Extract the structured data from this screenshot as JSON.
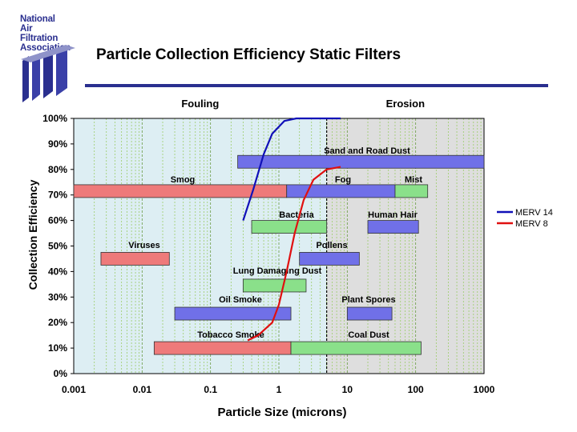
{
  "logo": {
    "lines": [
      "National",
      "Air",
      "Filtration",
      "Association"
    ]
  },
  "title": "Particle Collection Efficiency Static Filters",
  "chart_data": {
    "type": "bar",
    "xlabel": "Particle Size (microns)",
    "ylabel": "Collection Efficiency",
    "x_scale": "log",
    "xlim": [
      0.001,
      1000
    ],
    "ylim": [
      0,
      100
    ],
    "x_ticks": [
      {
        "value": 0.001,
        "label": "0.001"
      },
      {
        "value": 0.01,
        "label": "0.01"
      },
      {
        "value": 0.1,
        "label": "0.1"
      },
      {
        "value": 1,
        "label": "1"
      },
      {
        "value": 10,
        "label": "10"
      },
      {
        "value": 100,
        "label": "100"
      },
      {
        "value": 1000,
        "label": "1000"
      }
    ],
    "y_ticks": [
      {
        "value": 0,
        "label": "0%"
      },
      {
        "value": 10,
        "label": "10%"
      },
      {
        "value": 20,
        "label": "20%"
      },
      {
        "value": 30,
        "label": "30%"
      },
      {
        "value": 40,
        "label": "40%"
      },
      {
        "value": 50,
        "label": "50%"
      },
      {
        "value": 60,
        "label": "60%"
      },
      {
        "value": 70,
        "label": "70%"
      },
      {
        "value": 80,
        "label": "80%"
      },
      {
        "value": 90,
        "label": "90%"
      },
      {
        "value": 100,
        "label": "100%"
      }
    ],
    "regions": [
      {
        "label": "Fouling",
        "x_from": 0.001,
        "x_to": 5,
        "color": "#ddeef3"
      },
      {
        "label": "Erosion",
        "x_from": 5,
        "x_to": 1000,
        "color": "#dedede"
      }
    ],
    "particles": [
      {
        "name": "Sand and Road Dust",
        "x_from": 0.25,
        "x_to": 1000,
        "y": 83,
        "color": "#7070e8"
      },
      {
        "name": "Smog",
        "x_from": 0.001,
        "x_to": 1.3,
        "y": 71.5,
        "color": "#ee7a7a"
      },
      {
        "name": "Fog",
        "x_from": 1.3,
        "x_to": 50,
        "y": 71.5,
        "color": "#7070e8"
      },
      {
        "name": "Mist",
        "x_from": 50,
        "x_to": 150,
        "y": 71.5,
        "color": "#8ae08a"
      },
      {
        "name": "Bacteria",
        "x_from": 0.4,
        "x_to": 5,
        "y": 57.5,
        "color": "#8ae08a"
      },
      {
        "name": "Human Hair",
        "x_from": 20,
        "x_to": 110,
        "y": 57.5,
        "color": "#7070e8"
      },
      {
        "name": "Viruses",
        "x_from": 0.0025,
        "x_to": 0.025,
        "y": 45,
        "color": "#ee7a7a"
      },
      {
        "name": "Pollens",
        "x_from": 2,
        "x_to": 15,
        "y": 45,
        "color": "#7070e8"
      },
      {
        "name": "Lung Damaging Dust",
        "x_from": 0.3,
        "x_to": 2.5,
        "y": 34.5,
        "color": "#8ae08a"
      },
      {
        "name": "Oil Smoke",
        "x_from": 0.03,
        "x_to": 1.5,
        "y": 23.5,
        "color": "#7070e8"
      },
      {
        "name": "Plant Spores",
        "x_from": 10,
        "x_to": 45,
        "y": 23.5,
        "color": "#7070e8"
      },
      {
        "name": "Tobacco Smoke",
        "x_from": 0.015,
        "x_to": 1.5,
        "y": 10,
        "color": "#ee7a7a"
      },
      {
        "name": "Coal Dust",
        "x_from": 1.5,
        "x_to": 120,
        "y": 10,
        "color": "#8ae08a"
      }
    ],
    "series": [
      {
        "name": "MERV 14",
        "color": "#1010b8",
        "points": [
          [
            0.3,
            60
          ],
          [
            0.42,
            72
          ],
          [
            0.6,
            86
          ],
          [
            0.8,
            94
          ],
          [
            1.2,
            99
          ],
          [
            1.8,
            100
          ],
          [
            8,
            100
          ]
        ]
      },
      {
        "name": "MERV 8",
        "color": "#e01010",
        "points": [
          [
            0.35,
            13
          ],
          [
            0.5,
            15
          ],
          [
            0.8,
            20
          ],
          [
            1.0,
            27
          ],
          [
            1.3,
            40
          ],
          [
            1.7,
            55
          ],
          [
            2.3,
            68
          ],
          [
            3.2,
            76
          ],
          [
            5,
            80
          ],
          [
            8,
            81
          ]
        ]
      }
    ],
    "legend": "right"
  }
}
